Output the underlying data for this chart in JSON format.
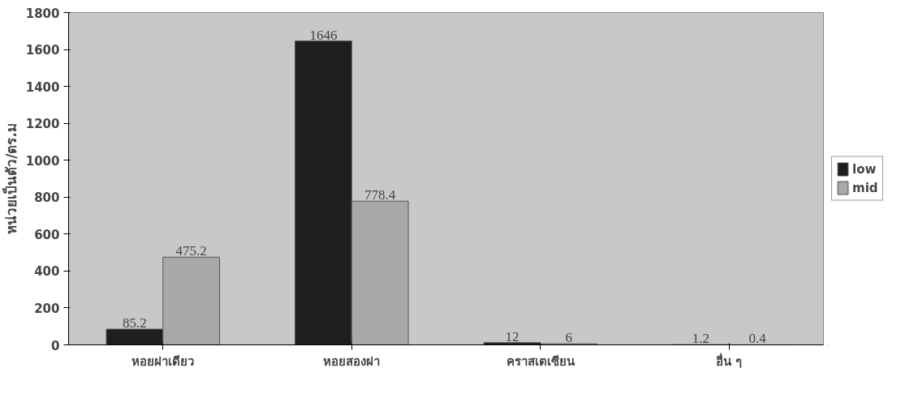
{
  "chart_data": {
    "type": "bar",
    "ylabel": "หน่วยเป็นตัว/ตร.ม",
    "categories": [
      "หอยฝาเดียว",
      "หอยสองฝา",
      "คราสเตเซียน",
      "อื่น ๆ"
    ],
    "series": [
      {
        "name": "low",
        "color": "#1e1e1e",
        "values": [
          85.2,
          1646,
          12,
          1.2
        ]
      },
      {
        "name": "mid",
        "color": "#a8a8a8",
        "values": [
          475.2,
          778.4,
          6,
          0.4
        ]
      }
    ],
    "ylim": [
      0,
      1800
    ],
    "yticks": [
      0,
      200,
      400,
      600,
      800,
      1000,
      1200,
      1400,
      1600,
      1800
    ],
    "data_labels": true,
    "legend": "right",
    "grid": false
  }
}
